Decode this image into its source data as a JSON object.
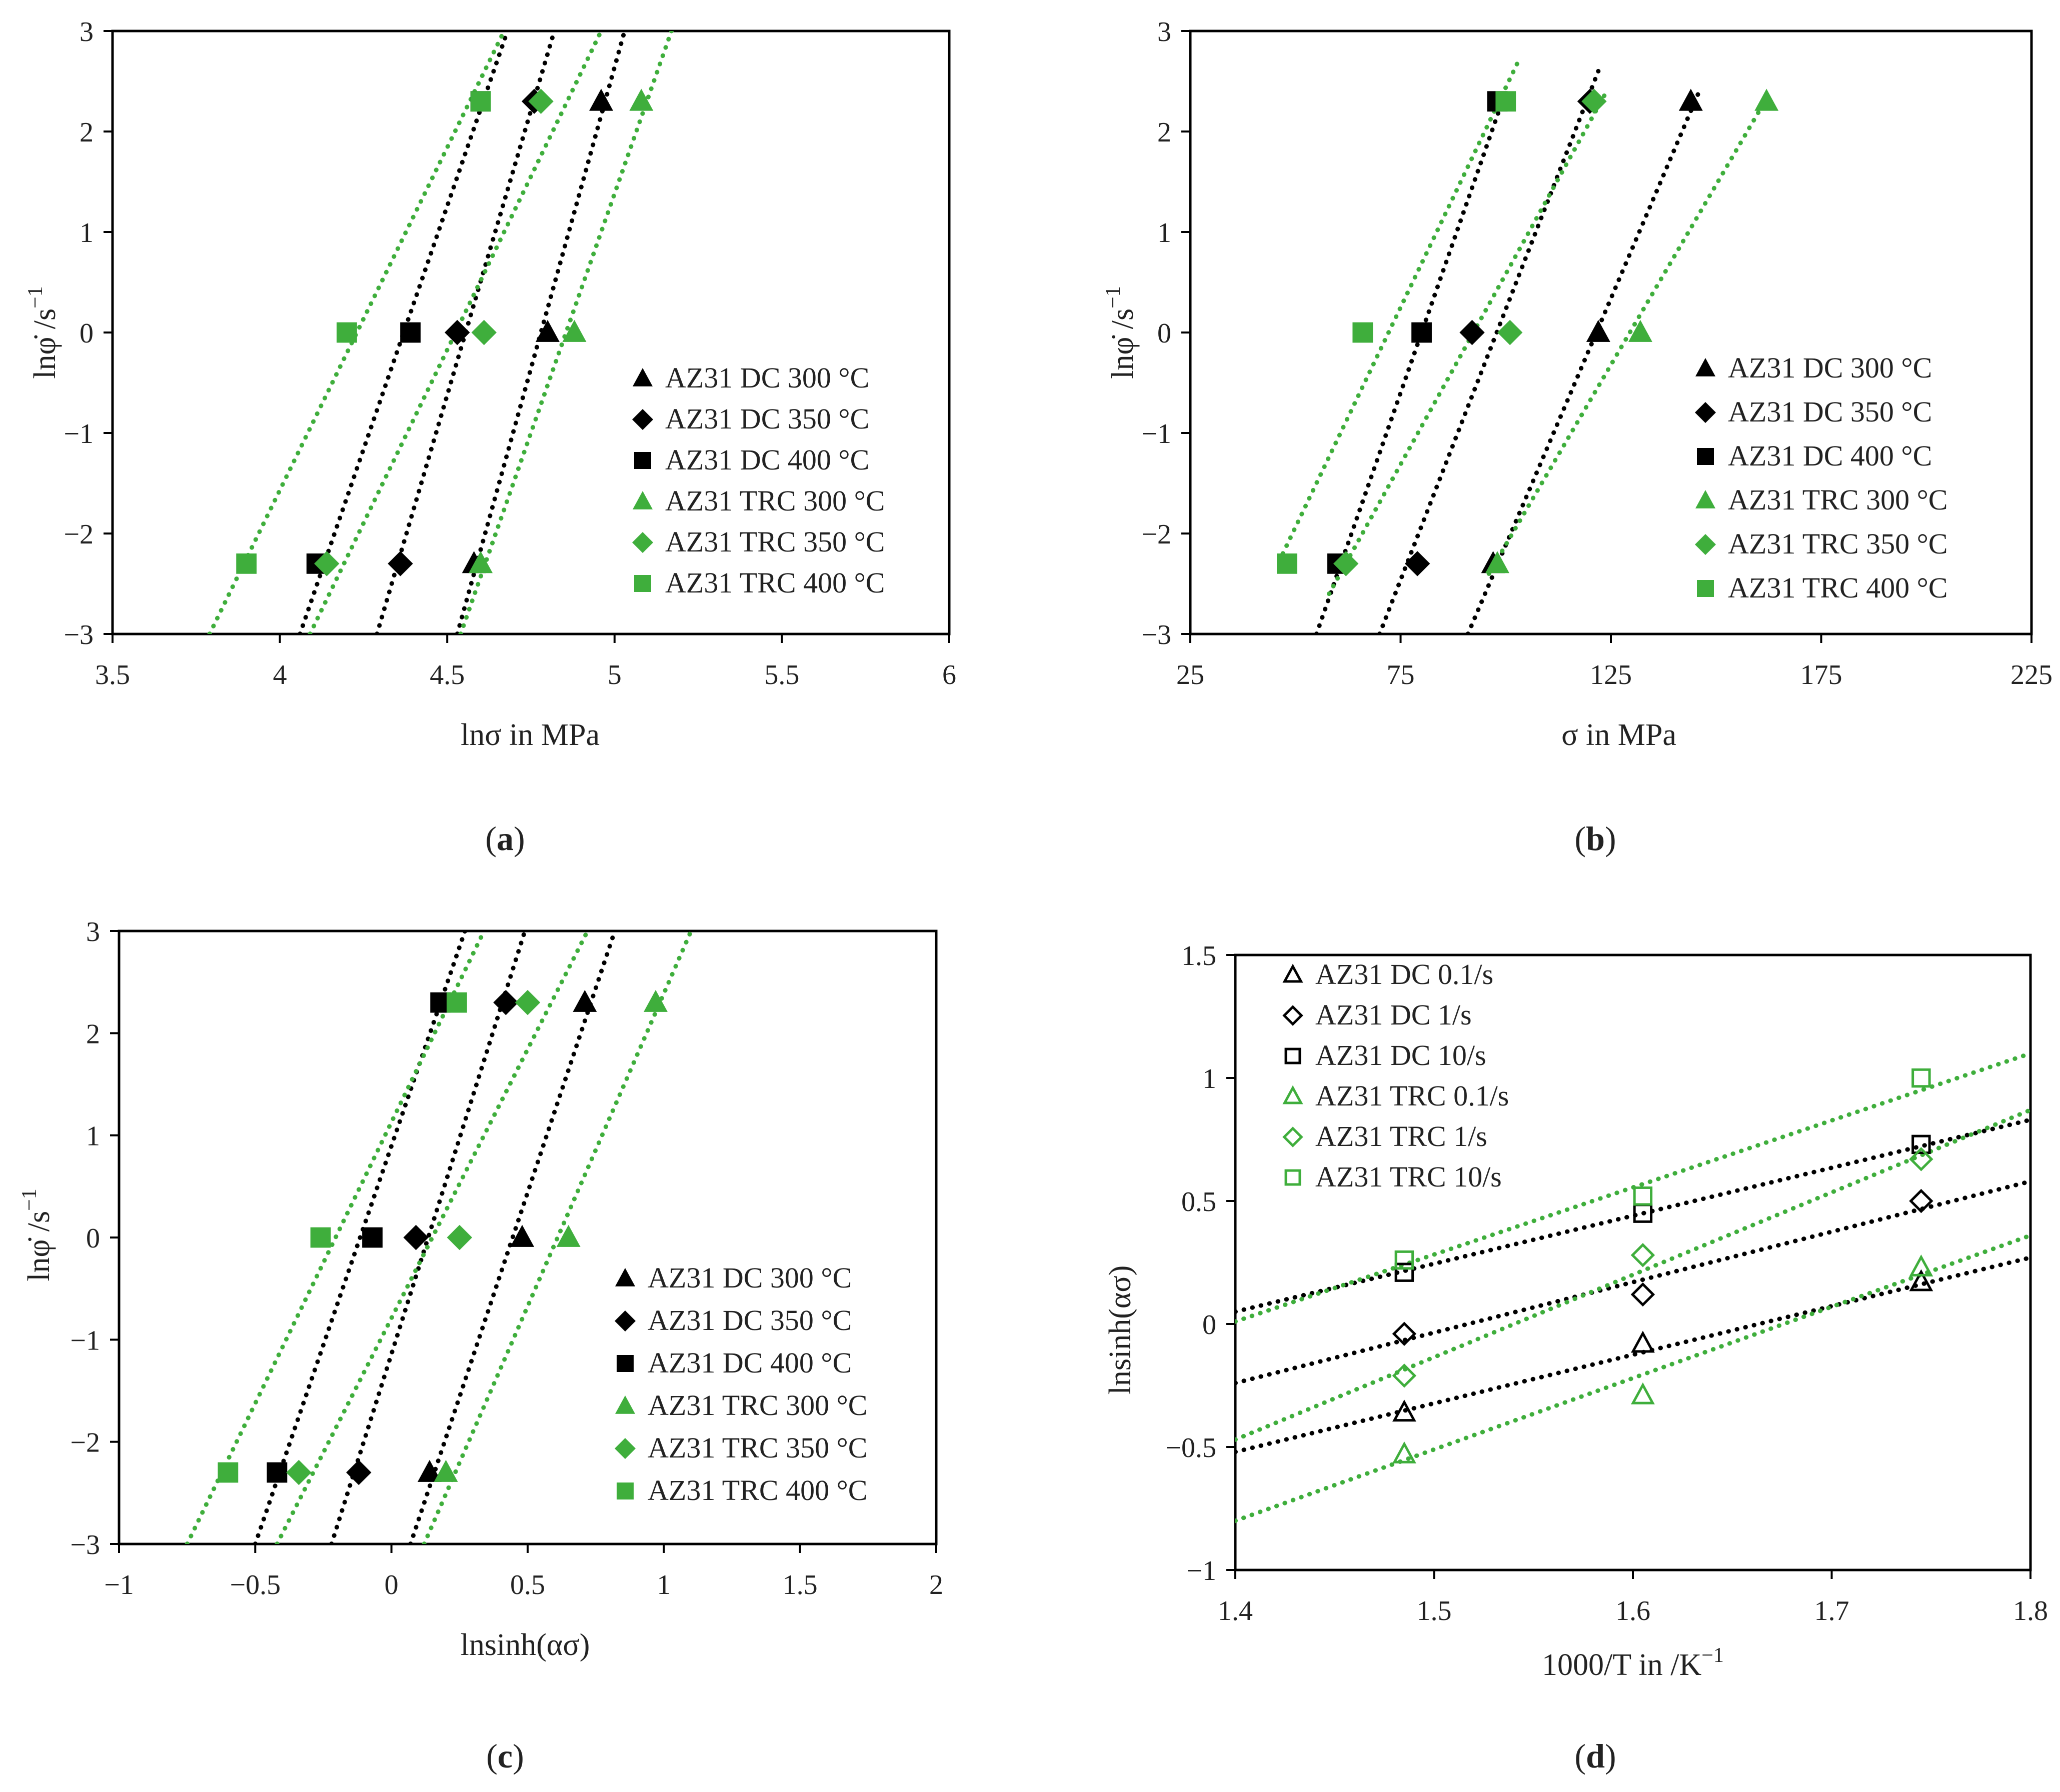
{
  "figure": {
    "colors": {
      "dc": "#000000",
      "trc": "#3fae3c"
    },
    "panels": [
      {
        "id": "a",
        "caption": "a",
        "xlabel": "lnσ in MPa",
        "ylabel_text": "lnφ̇ /s",
        "ylabel_sup": "−1",
        "xlim": [
          3.5,
          6
        ],
        "ylim": [
          -3,
          3
        ],
        "xticks": [
          "3.5",
          "4",
          "4.5",
          "5",
          "5.5",
          "6"
        ],
        "yticks": [
          "3",
          "2",
          "1",
          "0",
          "−1",
          "−2",
          "−3"
        ],
        "legend": [
          "AZ31 DC 300 °C",
          "AZ31 DC 350 °C",
          "AZ31 DC 400 °C",
          "AZ31 TRC 300 °C",
          "AZ31 TRC 350 °C",
          "AZ31 TRC 400 °C"
        ],
        "chart_data": {
          "type": "scatter",
          "x_label": "lnσ in MPa",
          "y_label": "lnφ̇ /s⁻¹",
          "series": [
            {
              "name": "AZ31 DC 300 °C",
              "group": "dc",
              "marker": "triangle",
              "filled": true,
              "points": [
                [
                  4.58,
                  -2.3
                ],
                [
                  4.8,
                  0.0
                ],
                [
                  4.96,
                  2.3
                ]
              ],
              "fit": [
                [
                  4.53,
                  -3.0
                ],
                [
                  5.03,
                  3.0
                ]
              ]
            },
            {
              "name": "AZ31 DC 350 °C",
              "group": "dc",
              "marker": "diamond",
              "filled": true,
              "points": [
                [
                  4.36,
                  -2.3
                ],
                [
                  4.53,
                  0.0
                ],
                [
                  4.76,
                  2.3
                ]
              ],
              "fit": [
                [
                  4.29,
                  -3.0
                ],
                [
                  4.82,
                  3.0
                ]
              ]
            },
            {
              "name": "AZ31 DC 400 °C",
              "group": "dc",
              "marker": "square",
              "filled": true,
              "points": [
                [
                  4.11,
                  -2.3
                ],
                [
                  4.39,
                  0.0
                ],
                [
                  4.6,
                  2.3
                ]
              ],
              "fit": [
                [
                  4.06,
                  -3.0
                ],
                [
                  4.68,
                  3.0
                ]
              ]
            },
            {
              "name": "AZ31 TRC 300 °C",
              "group": "trc",
              "marker": "triangle",
              "filled": true,
              "points": [
                [
                  4.6,
                  -2.3
                ],
                [
                  4.88,
                  0.0
                ],
                [
                  5.08,
                  2.3
                ]
              ],
              "fit": [
                [
                  4.54,
                  -3.0
                ],
                [
                  5.17,
                  3.0
                ]
              ]
            },
            {
              "name": "AZ31 TRC 350 °C",
              "group": "trc",
              "marker": "diamond",
              "filled": true,
              "points": [
                [
                  4.14,
                  -2.3
                ],
                [
                  4.61,
                  0.0
                ],
                [
                  4.78,
                  2.3
                ]
              ],
              "fit": [
                [
                  4.09,
                  -3.0
                ],
                [
                  4.96,
                  3.0
                ]
              ]
            },
            {
              "name": "AZ31 TRC 400 °C",
              "group": "trc",
              "marker": "square",
              "filled": true,
              "points": [
                [
                  3.9,
                  -2.3
                ],
                [
                  4.2,
                  0.0
                ],
                [
                  4.6,
                  2.3
                ]
              ],
              "fit": [
                [
                  3.79,
                  -3.0
                ],
                [
                  4.67,
                  3.0
                ]
              ]
            }
          ]
        }
      },
      {
        "id": "b",
        "caption": "b",
        "xlabel": "σ in MPa",
        "ylabel_text": "lnφ̇ /s",
        "ylabel_sup": "−1",
        "xlim": [
          25,
          225
        ],
        "ylim": [
          -3,
          3
        ],
        "xticks": [
          "25",
          "75",
          "125",
          "175",
          "225"
        ],
        "yticks": [
          "3",
          "2",
          "1",
          "0",
          "−1",
          "−2",
          "−3"
        ],
        "legend": [
          "AZ31 DC 300 °C",
          "AZ31 DC 350 °C",
          "AZ31 DC 400 °C",
          "AZ31 TRC 300 °C",
          "AZ31 TRC 350 °C",
          "AZ31 TRC 400 °C"
        ],
        "chart_data": {
          "type": "scatter",
          "x_label": "σ in MPa",
          "y_label": "lnφ̇ /s⁻¹",
          "series": [
            {
              "name": "AZ31 DC 300 °C",
              "group": "dc",
              "marker": "triangle",
              "filled": true,
              "points": [
                [
                  97,
                  -2.3
                ],
                [
                  122,
                  0.0
                ],
                [
                  144,
                  2.3
                ]
              ],
              "fit": [
                [
                  91,
                  -3.0
                ],
                [
                  146,
                  2.4
                ]
              ]
            },
            {
              "name": "AZ31 DC 350 °C",
              "group": "dc",
              "marker": "diamond",
              "filled": true,
              "points": [
                [
                  79,
                  -2.3
                ],
                [
                  92,
                  0.0
                ],
                [
                  120,
                  2.3
                ]
              ],
              "fit": [
                [
                  70,
                  -3.0
                ],
                [
                  122,
                  2.6
                ]
              ]
            },
            {
              "name": "AZ31 DC 400 °C",
              "group": "dc",
              "marker": "square",
              "filled": true,
              "points": [
                [
                  60,
                  -2.3
                ],
                [
                  80,
                  0.0
                ],
                [
                  98,
                  2.3
                ]
              ],
              "fit": [
                [
                  55,
                  -3.0
                ],
                [
                  100,
                  2.4
                ]
              ]
            },
            {
              "name": "AZ31 TRC 300 °C",
              "group": "trc",
              "marker": "triangle",
              "filled": true,
              "points": [
                [
                  98,
                  -2.3
                ],
                [
                  132,
                  0.0
                ],
                [
                  162,
                  2.3
                ]
              ],
              "fit": [
                [
                  96,
                  -2.4
                ],
                [
                  163,
                  2.4
                ]
              ]
            },
            {
              "name": "AZ31 TRC 350 °C",
              "group": "trc",
              "marker": "diamond",
              "filled": true,
              "points": [
                [
                  62,
                  -2.3
                ],
                [
                  101,
                  0.0
                ],
                [
                  121,
                  2.3
                ]
              ],
              "fit": [
                [
                  58,
                  -2.6
                ],
                [
                  124,
                  2.4
                ]
              ]
            },
            {
              "name": "AZ31 TRC 400 °C",
              "group": "trc",
              "marker": "square",
              "filled": true,
              "points": [
                [
                  48,
                  -2.3
                ],
                [
                  66,
                  0.0
                ],
                [
                  100,
                  2.3
                ]
              ],
              "fit": [
                [
                  47,
                  -2.2
                ],
                [
                  103,
                  2.7
                ]
              ]
            }
          ]
        }
      },
      {
        "id": "c",
        "caption": "c",
        "xlabel": "lnsinh(ασ)",
        "ylabel_text": "lnφ̇ /s",
        "ylabel_sup": "−1",
        "xlim": [
          -1,
          2
        ],
        "ylim": [
          -3,
          3
        ],
        "xticks": [
          "−1",
          "−0.5",
          "0",
          "0.5",
          "1",
          "1.5",
          "2"
        ],
        "yticks": [
          "3",
          "2",
          "1",
          "0",
          "−1",
          "−2",
          "−3"
        ],
        "legend": [
          "AZ31 DC 300 °C",
          "AZ31 DC 350 °C",
          "AZ31 DC 400 °C",
          "AZ31 TRC 300 °C",
          "AZ31 TRC 350 °C",
          "AZ31 TRC 400 °C"
        ],
        "chart_data": {
          "type": "scatter",
          "x_label": "lnsinh(ασ)",
          "y_label": "lnφ̇ /s⁻¹",
          "series": [
            {
              "name": "AZ31 DC 300 °C",
              "group": "dc",
              "marker": "triangle",
              "filled": true,
              "points": [
                [
                  0.14,
                  -2.3
                ],
                [
                  0.48,
                  0.0
                ],
                [
                  0.71,
                  2.3
                ]
              ],
              "fit": [
                [
                  0.07,
                  -3.0
                ],
                [
                  0.82,
                  3.0
                ]
              ]
            },
            {
              "name": "AZ31 DC 350 °C",
              "group": "dc",
              "marker": "diamond",
              "filled": true,
              "points": [
                [
                  -0.12,
                  -2.3
                ],
                [
                  0.09,
                  0.0
                ],
                [
                  0.42,
                  2.3
                ]
              ],
              "fit": [
                [
                  -0.22,
                  -3.0
                ],
                [
                  0.49,
                  3.0
                ]
              ]
            },
            {
              "name": "AZ31 DC 400 °C",
              "group": "dc",
              "marker": "square",
              "filled": true,
              "points": [
                [
                  -0.42,
                  -2.3
                ],
                [
                  -0.07,
                  0.0
                ],
                [
                  0.18,
                  2.3
                ]
              ],
              "fit": [
                [
                  -0.5,
                  -3.0
                ],
                [
                  0.27,
                  3.0
                ]
              ]
            },
            {
              "name": "AZ31 TRC 300 °C",
              "group": "trc",
              "marker": "triangle",
              "filled": true,
              "points": [
                [
                  0.2,
                  -2.3
                ],
                [
                  0.65,
                  0.0
                ],
                [
                  0.97,
                  2.3
                ]
              ],
              "fit": [
                [
                  0.12,
                  -3.0
                ],
                [
                  1.1,
                  3.0
                ]
              ]
            },
            {
              "name": "AZ31 TRC 350 °C",
              "group": "trc",
              "marker": "diamond",
              "filled": true,
              "points": [
                [
                  -0.34,
                  -2.3
                ],
                [
                  0.25,
                  0.0
                ],
                [
                  0.5,
                  2.3
                ]
              ],
              "fit": [
                [
                  -0.42,
                  -3.0
                ],
                [
                  0.72,
                  3.0
                ]
              ]
            },
            {
              "name": "AZ31 TRC 400 °C",
              "group": "trc",
              "marker": "square",
              "filled": true,
              "points": [
                [
                  -0.6,
                  -2.3
                ],
                [
                  -0.26,
                  0.0
                ],
                [
                  0.24,
                  2.3
                ]
              ],
              "fit": [
                [
                  -0.75,
                  -3.0
                ],
                [
                  0.34,
                  3.0
                ]
              ]
            }
          ]
        }
      },
      {
        "id": "d",
        "caption": "d",
        "xlabel_text": "1000/T in /K",
        "xlabel_sup": "−1",
        "ylabel": "lnsinh(ασ)",
        "xlim": [
          1.4,
          1.8
        ],
        "ylim": [
          -1,
          1.5
        ],
        "xticks": [
          "1.4",
          "1.5",
          "1.6",
          "1.7",
          "1.8"
        ],
        "yticks": [
          "1.5",
          "1",
          "0.5",
          "0",
          "−0.5",
          "−1"
        ],
        "legend": [
          "AZ31 DC 0.1/s",
          "AZ31 DC 1/s",
          "AZ31 DC 10/s",
          "AZ31 TRC 0.1/s",
          "AZ31 TRC 1/s",
          "AZ31 TRC 10/s"
        ],
        "chart_data": {
          "type": "scatter",
          "x_label": "1000/T in /K⁻¹",
          "y_label": "lnsinh(ασ)",
          "series": [
            {
              "name": "AZ31 DC 0.1/s",
              "group": "dc",
              "marker": "triangle",
              "filled": false,
              "points": [
                [
                  1.485,
                  -0.36
                ],
                [
                  1.605,
                  -0.08
                ],
                [
                  1.745,
                  0.17
                ]
              ],
              "fit": [
                [
                  1.4,
                  -0.52
                ],
                [
                  1.8,
                  0.27
                ]
              ]
            },
            {
              "name": "AZ31 DC 1/s",
              "group": "dc",
              "marker": "diamond",
              "filled": false,
              "points": [
                [
                  1.485,
                  -0.04
                ],
                [
                  1.605,
                  0.12
                ],
                [
                  1.745,
                  0.5
                ]
              ],
              "fit": [
                [
                  1.4,
                  -0.24
                ],
                [
                  1.8,
                  0.58
                ]
              ]
            },
            {
              "name": "AZ31 DC 10/s",
              "group": "dc",
              "marker": "square",
              "filled": false,
              "points": [
                [
                  1.485,
                  0.21
                ],
                [
                  1.605,
                  0.45
                ],
                [
                  1.745,
                  0.73
                ]
              ],
              "fit": [
                [
                  1.4,
                  0.05
                ],
                [
                  1.8,
                  0.83
                ]
              ]
            },
            {
              "name": "AZ31 TRC 0.1/s",
              "group": "trc",
              "marker": "triangle",
              "filled": false,
              "points": [
                [
                  1.485,
                  -0.53
                ],
                [
                  1.605,
                  -0.29
                ],
                [
                  1.745,
                  0.23
                ]
              ],
              "fit": [
                [
                  1.4,
                  -0.8
                ],
                [
                  1.8,
                  0.36
                ]
              ]
            },
            {
              "name": "AZ31 TRC 1/s",
              "group": "trc",
              "marker": "diamond",
              "filled": false,
              "points": [
                [
                  1.485,
                  -0.21
                ],
                [
                  1.605,
                  0.28
                ],
                [
                  1.745,
                  0.67
                ]
              ],
              "fit": [
                [
                  1.4,
                  -0.47
                ],
                [
                  1.8,
                  0.87
                ]
              ]
            },
            {
              "name": "AZ31 TRC 10/s",
              "group": "trc",
              "marker": "square",
              "filled": false,
              "points": [
                [
                  1.485,
                  0.26
                ],
                [
                  1.605,
                  0.52
                ],
                [
                  1.745,
                  1.0
                ]
              ],
              "fit": [
                [
                  1.4,
                  0.01
                ],
                [
                  1.8,
                  1.1
                ]
              ]
            }
          ]
        }
      }
    ]
  }
}
